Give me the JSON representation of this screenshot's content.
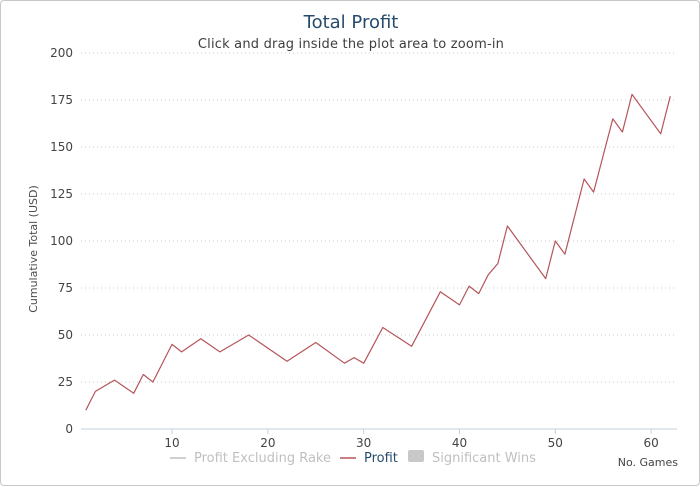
{
  "chart_data": {
    "type": "line",
    "title": "Total Profit",
    "subtitle": "Click and drag inside the plot area to zoom-in",
    "xlabel": "No. Games",
    "ylabel": "Cumulative Total (USD)",
    "xlim": [
      0.5,
      62.7
    ],
    "ylim": [
      0,
      200
    ],
    "x_ticks": [
      10,
      20,
      30,
      40,
      50,
      60
    ],
    "y_ticks": [
      0,
      25,
      50,
      75,
      100,
      125,
      150,
      175,
      200
    ],
    "grid": "horizontal-dotted",
    "legend_position": "bottom-center",
    "legend": [
      {
        "name": "Profit Excluding Rake",
        "color": "#c0c0c0",
        "symbol": "line",
        "active": false
      },
      {
        "name": "Profit",
        "color": "#b5555a",
        "symbol": "line",
        "active": true
      },
      {
        "name": "Significant Wins",
        "color": "#c8c8c8",
        "symbol": "box",
        "active": false
      }
    ],
    "series": [
      {
        "name": "Profit",
        "color": "#b5555a",
        "x": [
          1,
          2,
          4,
          6,
          7,
          8,
          10,
          11,
          13,
          15,
          18,
          22,
          25,
          28,
          29,
          30,
          32,
          35,
          38,
          40,
          41,
          42,
          43,
          44,
          45,
          49,
          50,
          51,
          53,
          54,
          56,
          57,
          58,
          61,
          62
        ],
        "y": [
          10,
          20,
          26,
          19,
          29,
          25,
          45,
          41,
          48,
          41,
          50,
          36,
          46,
          35,
          38,
          35,
          54,
          44,
          73,
          66,
          76,
          72,
          82,
          88,
          108,
          80,
          100,
          93,
          133,
          126,
          165,
          158,
          178,
          157,
          177
        ]
      }
    ]
  }
}
